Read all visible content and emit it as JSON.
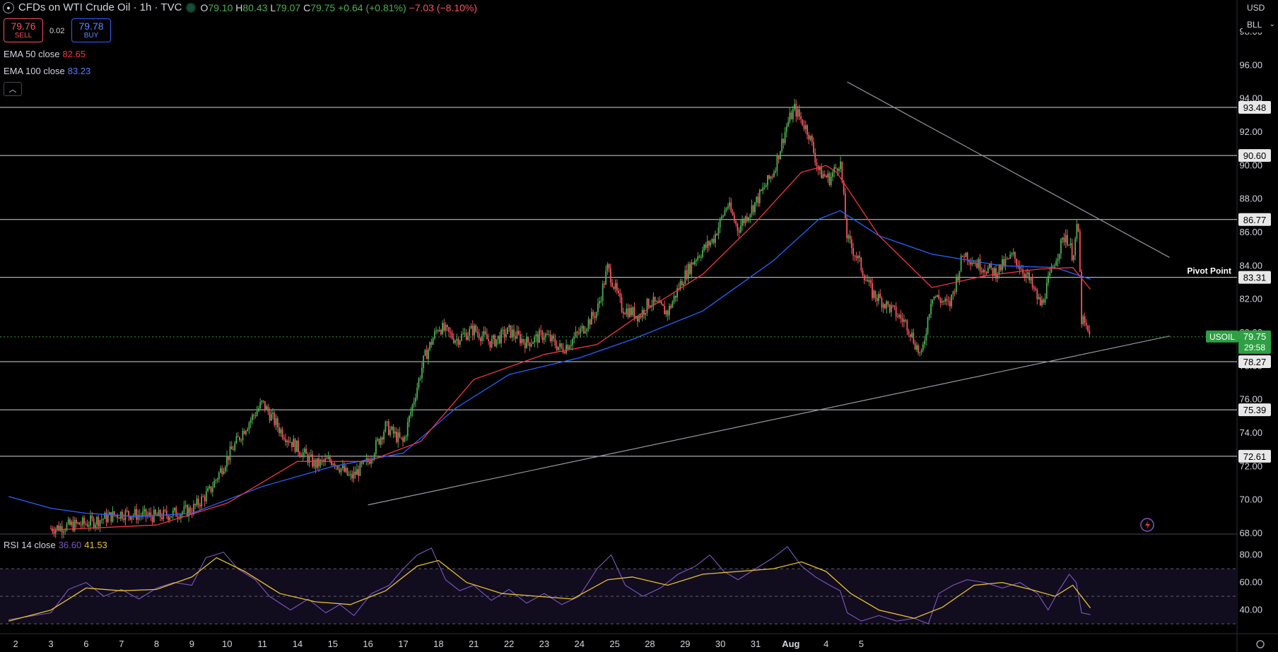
{
  "header": {
    "title": "CFDs on WTI Crude Oil · 1h · TVC",
    "o_label": "O",
    "o": "79.10",
    "h_label": "H",
    "h": "80.43",
    "l_label": "L",
    "l": "79.07",
    "c_label": "C",
    "c": "79.75",
    "change": "+0.64 (+0.81%)",
    "extra_change": "−7.03 (−8.10%)"
  },
  "trade": {
    "sell_price": "79.76",
    "sell_label": "SELL",
    "spread": "0.02",
    "buy_price": "79.78",
    "buy_label": "BUY"
  },
  "indicators": [
    {
      "label": "EMA 50 close",
      "value": "82.65",
      "color": "#f23645"
    },
    {
      "label": "EMA 100 close",
      "value": "83.23",
      "color": "#2962ff"
    }
  ],
  "rsi": {
    "label": "RSI 14 close",
    "value": "36.60",
    "ma_value": "41.53",
    "color": "#7e57c2",
    "ma_color": "#e6c229"
  },
  "currency": {
    "unit": "USD",
    "measure": "BLL"
  },
  "colors": {
    "up": "#4caf50",
    "down": "#f7525f",
    "ema50": "#f23645",
    "ema100": "#2962ff",
    "rsi_line": "#7e57c2",
    "rsi_ma": "#e6c229",
    "level_line": "#d1d4dc",
    "last_price_bg": "#2ea043"
  },
  "chart_data": {
    "type": "candlestick",
    "symbol": "USOIL",
    "interval": "1h",
    "y_axis_ticks": [
      "68.00",
      "70.00",
      "72.00",
      "74.00",
      "76.00",
      "78.00",
      "80.00",
      "82.00",
      "84.00",
      "86.00",
      "88.00",
      "90.00",
      "92.00",
      "94.00",
      "96.00",
      "98.00"
    ],
    "ylim": [
      68,
      98.6
    ],
    "x_axis_ticks": [
      "2",
      "3",
      "6",
      "7",
      "8",
      "9",
      "10",
      "11",
      "14",
      "15",
      "16",
      "17",
      "18",
      "21",
      "22",
      "23",
      "24",
      "25",
      "28",
      "29",
      "30",
      "31",
      "Aug",
      "4",
      "5"
    ],
    "horizontal_levels": [
      {
        "value": 93.48,
        "label": "93.48"
      },
      {
        "value": 90.6,
        "label": "90.60"
      },
      {
        "value": 86.77,
        "label": "86.77"
      },
      {
        "value": 83.31,
        "label": "83.31",
        "note": "Pivot Point"
      },
      {
        "value": 78.27,
        "label": "78.27"
      },
      {
        "value": 75.39,
        "label": "75.39"
      },
      {
        "value": 72.61,
        "label": "72.61"
      }
    ],
    "last_price": {
      "symbol": "USOIL",
      "value": "79.75",
      "countdown": "29:58"
    },
    "trendlines": [
      {
        "name": "descending resistance",
        "from": {
          "day": 22.6,
          "price": 95.0
        },
        "to": {
          "day": 31.75,
          "price": 84.5
        }
      },
      {
        "name": "ascending support",
        "from": {
          "day": 9,
          "price": 69.7
        },
        "to": {
          "day": 31.75,
          "price": 79.8
        }
      }
    ],
    "price_path": [
      {
        "d": 0,
        "p": 68.3
      },
      {
        "d": 1,
        "p": 68.6
      },
      {
        "d": 2,
        "p": 69.2
      },
      {
        "d": 3,
        "p": 69.0
      },
      {
        "d": 4,
        "p": 69.4
      },
      {
        "d": 4.5,
        "p": 70.5
      },
      {
        "d": 5,
        "p": 72.5
      },
      {
        "d": 5.5,
        "p": 74.3
      },
      {
        "d": 6,
        "p": 75.8
      },
      {
        "d": 6.5,
        "p": 74.2
      },
      {
        "d": 7,
        "p": 73.1
      },
      {
        "d": 7.5,
        "p": 72.1
      },
      {
        "d": 8,
        "p": 72.4
      },
      {
        "d": 8.5,
        "p": 71.3
      },
      {
        "d": 9,
        "p": 72.3
      },
      {
        "d": 9.5,
        "p": 74.4
      },
      {
        "d": 10,
        "p": 73.4
      },
      {
        "d": 10.3,
        "p": 76.0
      },
      {
        "d": 10.6,
        "p": 78.5
      },
      {
        "d": 11,
        "p": 80.4
      },
      {
        "d": 11.5,
        "p": 79.6
      },
      {
        "d": 12,
        "p": 80.2
      },
      {
        "d": 12.5,
        "p": 79.4
      },
      {
        "d": 13,
        "p": 80.1
      },
      {
        "d": 13.5,
        "p": 79.4
      },
      {
        "d": 14,
        "p": 79.9
      },
      {
        "d": 14.5,
        "p": 79.0
      },
      {
        "d": 15,
        "p": 80.0
      },
      {
        "d": 15.5,
        "p": 81.3
      },
      {
        "d": 15.8,
        "p": 83.9
      },
      {
        "d": 16.2,
        "p": 81.5
      },
      {
        "d": 16.7,
        "p": 81.0
      },
      {
        "d": 17,
        "p": 81.9
      },
      {
        "d": 17.5,
        "p": 81.2
      },
      {
        "d": 17.9,
        "p": 83.1
      },
      {
        "d": 18.3,
        "p": 84.5
      },
      {
        "d": 18.8,
        "p": 85.6
      },
      {
        "d": 19.2,
        "p": 87.7
      },
      {
        "d": 19.5,
        "p": 86.2
      },
      {
        "d": 20,
        "p": 87.8
      },
      {
        "d": 20.5,
        "p": 89.6
      },
      {
        "d": 20.9,
        "p": 92.5
      },
      {
        "d": 21.1,
        "p": 93.4
      },
      {
        "d": 21.5,
        "p": 92.0
      },
      {
        "d": 21.8,
        "p": 89.6
      },
      {
        "d": 22.1,
        "p": 89.2
      },
      {
        "d": 22.4,
        "p": 90.3
      },
      {
        "d": 22.6,
        "p": 85.6
      },
      {
        "d": 22.9,
        "p": 84.4
      },
      {
        "d": 23.3,
        "p": 82.4
      },
      {
        "d": 23.8,
        "p": 81.5
      },
      {
        "d": 24.3,
        "p": 80.5
      },
      {
        "d": 24.7,
        "p": 78.5
      },
      {
        "d": 25.0,
        "p": 82.3
      },
      {
        "d": 25.5,
        "p": 81.6
      },
      {
        "d": 25.9,
        "p": 84.8
      },
      {
        "d": 26.3,
        "p": 84.1
      },
      {
        "d": 26.8,
        "p": 83.6
      },
      {
        "d": 27.3,
        "p": 84.6
      },
      {
        "d": 27.7,
        "p": 83.4
      },
      {
        "d": 28.1,
        "p": 81.6
      },
      {
        "d": 28.5,
        "p": 84.4
      },
      {
        "d": 28.8,
        "p": 85.9
      },
      {
        "d": 29.0,
        "p": 84.6
      },
      {
        "d": 29.15,
        "p": 86.6
      },
      {
        "d": 29.25,
        "p": 80.8
      },
      {
        "d": 29.5,
        "p": 79.7
      }
    ],
    "ema50_path": [
      {
        "d": 0,
        "p": 68.2
      },
      {
        "d": 3,
        "p": 68.5
      },
      {
        "d": 5,
        "p": 69.8
      },
      {
        "d": 7,
        "p": 72.3
      },
      {
        "d": 9,
        "p": 72.3
      },
      {
        "d": 10.5,
        "p": 73.5
      },
      {
        "d": 12,
        "p": 77.2
      },
      {
        "d": 14,
        "p": 78.7
      },
      {
        "d": 15.5,
        "p": 79.3
      },
      {
        "d": 17,
        "p": 81.5
      },
      {
        "d": 18.5,
        "p": 83.5
      },
      {
        "d": 20,
        "p": 86.6
      },
      {
        "d": 21.3,
        "p": 89.6
      },
      {
        "d": 22.0,
        "p": 90.0
      },
      {
        "d": 22.3,
        "p": 89.6
      },
      {
        "d": 23.5,
        "p": 85.8
      },
      {
        "d": 25,
        "p": 82.7
      },
      {
        "d": 26.5,
        "p": 83.4
      },
      {
        "d": 28,
        "p": 83.8
      },
      {
        "d": 29,
        "p": 83.9
      },
      {
        "d": 29.5,
        "p": 82.6
      }
    ],
    "ema100_path": [
      {
        "d": -1.2,
        "p": 70.2
      },
      {
        "d": 0,
        "p": 69.5
      },
      {
        "d": 1,
        "p": 69.2
      },
      {
        "d": 2.5,
        "p": 69.0
      },
      {
        "d": 4,
        "p": 69.2
      },
      {
        "d": 6,
        "p": 70.8
      },
      {
        "d": 8,
        "p": 72.0
      },
      {
        "d": 10,
        "p": 72.8
      },
      {
        "d": 11.5,
        "p": 75.5
      },
      {
        "d": 13,
        "p": 77.5
      },
      {
        "d": 15,
        "p": 78.5
      },
      {
        "d": 16.5,
        "p": 79.6
      },
      {
        "d": 18.5,
        "p": 81.3
      },
      {
        "d": 20.5,
        "p": 84.3
      },
      {
        "d": 21.8,
        "p": 86.8
      },
      {
        "d": 22.4,
        "p": 87.3
      },
      {
        "d": 23.5,
        "p": 85.8
      },
      {
        "d": 25,
        "p": 84.7
      },
      {
        "d": 27,
        "p": 84.0
      },
      {
        "d": 28.5,
        "p": 83.9
      },
      {
        "d": 29.5,
        "p": 83.2
      }
    ],
    "rsi_panel": {
      "y_axis_ticks": [
        "40.00",
        "60.00",
        "80.00"
      ],
      "ylim": [
        28,
        88
      ],
      "band": [
        30,
        70
      ],
      "rsi_path": [
        {
          "d": -1.2,
          "p": 33
        },
        {
          "d": 0,
          "p": 38
        },
        {
          "d": 0.5,
          "p": 55
        },
        {
          "d": 1,
          "p": 60
        },
        {
          "d": 1.5,
          "p": 50
        },
        {
          "d": 2,
          "p": 55
        },
        {
          "d": 2.5,
          "p": 48
        },
        {
          "d": 3,
          "p": 56
        },
        {
          "d": 3.5,
          "p": 60
        },
        {
          "d": 4,
          "p": 58
        },
        {
          "d": 4.4,
          "p": 78
        },
        {
          "d": 4.9,
          "p": 82
        },
        {
          "d": 5.3,
          "p": 70
        },
        {
          "d": 5.8,
          "p": 62
        },
        {
          "d": 6.2,
          "p": 50
        },
        {
          "d": 6.8,
          "p": 40
        },
        {
          "d": 7.3,
          "p": 48
        },
        {
          "d": 7.8,
          "p": 38
        },
        {
          "d": 8.2,
          "p": 44
        },
        {
          "d": 8.6,
          "p": 36
        },
        {
          "d": 9.1,
          "p": 52
        },
        {
          "d": 9.6,
          "p": 58
        },
        {
          "d": 10,
          "p": 70
        },
        {
          "d": 10.4,
          "p": 80
        },
        {
          "d": 10.8,
          "p": 85
        },
        {
          "d": 11.2,
          "p": 62
        },
        {
          "d": 11.6,
          "p": 54
        },
        {
          "d": 12,
          "p": 58
        },
        {
          "d": 12.5,
          "p": 47
        },
        {
          "d": 13,
          "p": 55
        },
        {
          "d": 13.5,
          "p": 45
        },
        {
          "d": 14,
          "p": 52
        },
        {
          "d": 14.5,
          "p": 44
        },
        {
          "d": 15,
          "p": 50
        },
        {
          "d": 15.5,
          "p": 70
        },
        {
          "d": 15.9,
          "p": 80
        },
        {
          "d": 16.3,
          "p": 58
        },
        {
          "d": 16.8,
          "p": 50
        },
        {
          "d": 17.3,
          "p": 56
        },
        {
          "d": 17.8,
          "p": 66
        },
        {
          "d": 18.3,
          "p": 72
        },
        {
          "d": 18.7,
          "p": 80
        },
        {
          "d": 19.1,
          "p": 68
        },
        {
          "d": 19.5,
          "p": 62
        },
        {
          "d": 20,
          "p": 70
        },
        {
          "d": 20.5,
          "p": 78
        },
        {
          "d": 20.9,
          "p": 86
        },
        {
          "d": 21.3,
          "p": 72
        },
        {
          "d": 21.7,
          "p": 64
        },
        {
          "d": 22.1,
          "p": 58
        },
        {
          "d": 22.4,
          "p": 54
        },
        {
          "d": 22.6,
          "p": 38
        },
        {
          "d": 23,
          "p": 32
        },
        {
          "d": 23.5,
          "p": 36
        },
        {
          "d": 24,
          "p": 32
        },
        {
          "d": 24.5,
          "p": 34
        },
        {
          "d": 24.9,
          "p": 30
        },
        {
          "d": 25.2,
          "p": 52
        },
        {
          "d": 25.6,
          "p": 58
        },
        {
          "d": 26,
          "p": 62
        },
        {
          "d": 26.5,
          "p": 60
        },
        {
          "d": 27,
          "p": 56
        },
        {
          "d": 27.5,
          "p": 60
        },
        {
          "d": 28,
          "p": 52
        },
        {
          "d": 28.3,
          "p": 40
        },
        {
          "d": 28.6,
          "p": 54
        },
        {
          "d": 28.9,
          "p": 66
        },
        {
          "d": 29.1,
          "p": 60
        },
        {
          "d": 29.25,
          "p": 38
        },
        {
          "d": 29.5,
          "p": 36.6
        }
      ],
      "ma_path": [
        {
          "d": -1.2,
          "p": 32
        },
        {
          "d": 0,
          "p": 40
        },
        {
          "d": 1,
          "p": 56
        },
        {
          "d": 2,
          "p": 54
        },
        {
          "d": 3,
          "p": 55
        },
        {
          "d": 4,
          "p": 64
        },
        {
          "d": 4.7,
          "p": 78
        },
        {
          "d": 5.5,
          "p": 68
        },
        {
          "d": 6.5,
          "p": 52
        },
        {
          "d": 7.5,
          "p": 46
        },
        {
          "d": 8.5,
          "p": 44
        },
        {
          "d": 9.5,
          "p": 54
        },
        {
          "d": 10.4,
          "p": 72
        },
        {
          "d": 11,
          "p": 76
        },
        {
          "d": 11.8,
          "p": 60
        },
        {
          "d": 12.8,
          "p": 52
        },
        {
          "d": 13.8,
          "p": 50
        },
        {
          "d": 14.8,
          "p": 48
        },
        {
          "d": 15.8,
          "p": 62
        },
        {
          "d": 16.5,
          "p": 64
        },
        {
          "d": 17.5,
          "p": 58
        },
        {
          "d": 18.5,
          "p": 66
        },
        {
          "d": 19.5,
          "p": 68
        },
        {
          "d": 20.5,
          "p": 70
        },
        {
          "d": 21.3,
          "p": 75
        },
        {
          "d": 22,
          "p": 68
        },
        {
          "d": 22.7,
          "p": 52
        },
        {
          "d": 23.5,
          "p": 40
        },
        {
          "d": 24.5,
          "p": 34
        },
        {
          "d": 25.3,
          "p": 42
        },
        {
          "d": 26.2,
          "p": 58
        },
        {
          "d": 27,
          "p": 60
        },
        {
          "d": 27.8,
          "p": 55
        },
        {
          "d": 28.5,
          "p": 50
        },
        {
          "d": 29,
          "p": 58
        },
        {
          "d": 29.5,
          "p": 41.5
        }
      ]
    }
  }
}
